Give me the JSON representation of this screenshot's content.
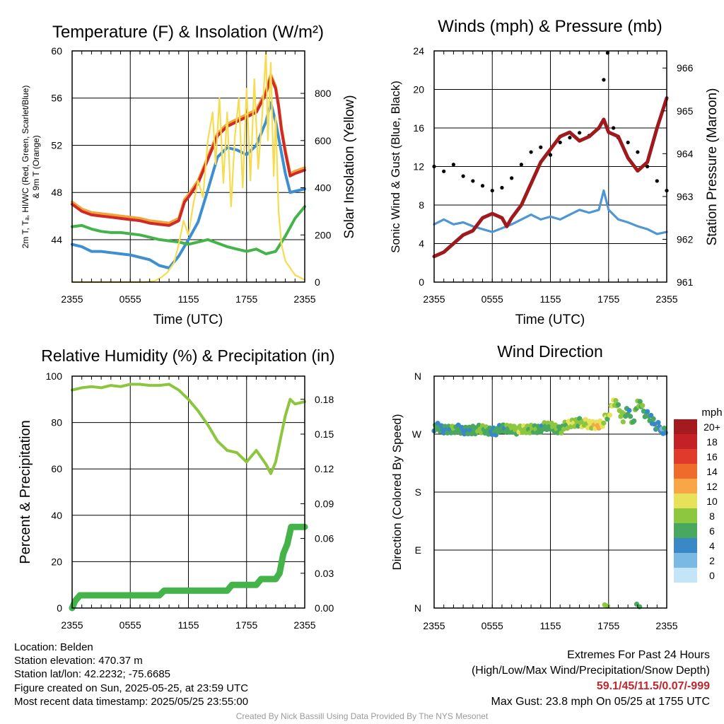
{
  "footer": {
    "location": "Location: Belden",
    "elevation": "Station elevation: 470.37 m",
    "latlon": "Station lat/lon: 42.2232; -75.6685",
    "created": "Figure created on Sun, 2025-05-25, at 23:59 UTC",
    "recent": "Most recent data timestamp: 2025/05/25 23:55:00",
    "extremes_title": "Extremes For Past 24 Hours",
    "extremes_sub": "(High/Low/Max Wind/Precipitation/Snow Depth)",
    "extremes_values": "59.1/45/11.5/0.07/-999",
    "max_gust": "Max Gust: 23.8 mph On 05/25 at 1755 UTC",
    "credit": "Created By Nick Bassill Using Data Provided By The NYS Mesonet"
  },
  "chart_data": [
    {
      "type": "line",
      "title": "Temperature (F) & Insolation (W/m²)",
      "xlabel": "Time (UTC)",
      "ylabel": "2m T, Tₐ, HI/WC (Red, Green, Scarlet/Blue) & 9m T (Orange)",
      "ylabel_line1": "2m T, Tₐ, HI/WC (Red, Green, Scarlet/Blue)",
      "ylabel_line2": "& 9m T (Orange)",
      "y2label": "Solar Insolation (Yellow)",
      "xticks": [
        "2355",
        "0555",
        "1155",
        "1755",
        "2355"
      ],
      "yticks": [
        "60",
        "56",
        "52",
        "48",
        "44"
      ],
      "y2ticks": [
        "800",
        "600",
        "400",
        "200",
        "0"
      ],
      "ylim": [
        40.4,
        60
      ],
      "y2lim": [
        0,
        980
      ],
      "x_hours": [
        0,
        24
      ],
      "series": [
        {
          "color": "#f2a33a",
          "x": [
            0,
            0.5,
            1,
            2,
            3,
            4,
            5,
            6,
            7,
            8,
            9,
            10,
            11,
            11.3,
            11.6,
            12,
            13,
            14,
            14.5,
            15,
            16,
            17,
            18,
            19,
            20,
            20.5,
            21,
            21.3,
            21.6,
            22,
            22.5,
            23,
            24
          ],
          "values": [
            47.2,
            46.9,
            46.6,
            46.3,
            46.2,
            46.1,
            46.0,
            45.9,
            45.8,
            45.6,
            45.5,
            45.4,
            45.8,
            46.6,
            47.4,
            47.8,
            49.0,
            51.0,
            52.0,
            53.0,
            53.8,
            54.2,
            54.6,
            55.0,
            56.6,
            58.0,
            57.0,
            55.5,
            53.5,
            51.6,
            49.6,
            49.8,
            50.1
          ]
        },
        {
          "color": "#cf2a27",
          "x": [
            0,
            0.5,
            1,
            2,
            3,
            4,
            5,
            6,
            7,
            8,
            9,
            10,
            11,
            11.3,
            11.6,
            12,
            13,
            14,
            14.5,
            15,
            16,
            17,
            18,
            19,
            20,
            20.5,
            21,
            21.3,
            21.6,
            22,
            22.5,
            23,
            24
          ],
          "values": [
            47.0,
            46.7,
            46.4,
            46.1,
            46.0,
            45.9,
            45.8,
            45.7,
            45.6,
            45.4,
            45.3,
            45.2,
            45.6,
            46.4,
            47.2,
            47.6,
            48.8,
            50.8,
            51.8,
            52.8,
            53.6,
            54.0,
            54.4,
            54.8,
            56.4,
            57.8,
            56.8,
            55.3,
            53.3,
            51.4,
            49.4,
            49.6,
            49.9
          ]
        },
        {
          "color": "#3d8fcf",
          "x": [
            0,
            1,
            2,
            3,
            4,
            5,
            6,
            7,
            8,
            9,
            10,
            11,
            12,
            13,
            14,
            15,
            16,
            17,
            18,
            19,
            20,
            20.5,
            21,
            21.5,
            22,
            22.5,
            23,
            24
          ],
          "values": [
            43.6,
            43.4,
            43.0,
            43.0,
            42.9,
            42.8,
            42.7,
            42.5,
            42.3,
            41.8,
            41.6,
            42.6,
            44.0,
            45.5,
            48.2,
            51.0,
            51.8,
            51.6,
            51.2,
            52.0,
            54.0,
            55.6,
            54.0,
            51.8,
            49.6,
            48.0,
            48.1,
            48.3
          ]
        },
        {
          "color": "#43b34a",
          "x": [
            0,
            1,
            2,
            3,
            4,
            5,
            6,
            7,
            8,
            9,
            10,
            11,
            12,
            13,
            14,
            15,
            16,
            17,
            18,
            19,
            20,
            21,
            22,
            23,
            24
          ],
          "values": [
            45.1,
            45.2,
            44.9,
            44.7,
            44.6,
            44.6,
            44.5,
            44.4,
            44.2,
            44.0,
            43.9,
            43.8,
            43.6,
            43.8,
            44.0,
            43.7,
            43.4,
            43.2,
            43.0,
            43.2,
            42.8,
            43.0,
            44.3,
            45.8,
            46.8
          ]
        },
        {
          "color": "#f5dc50",
          "axis": "y2",
          "x": [
            0,
            7.5,
            8.5,
            9.2,
            9.8,
            10.5,
            11.0,
            11.5,
            12.0,
            12.5,
            13.0,
            13.5,
            14.0,
            14.5,
            14.8,
            15.2,
            15.6,
            16.0,
            16.4,
            16.8,
            17.2,
            17.6,
            18.0,
            18.4,
            18.8,
            19.2,
            19.6,
            20.0,
            20.2,
            20.5,
            20.8,
            21.0,
            21.3,
            21.6,
            22.0,
            22.5,
            23.0,
            24.0
          ],
          "values": [
            0,
            0,
            5,
            20,
            40,
            80,
            160,
            260,
            200,
            330,
            430,
            360,
            600,
            720,
            500,
            780,
            420,
            720,
            320,
            620,
            780,
            400,
            820,
            430,
            860,
            480,
            700,
            975,
            600,
            930,
            450,
            700,
            300,
            160,
            90,
            60,
            30,
            10
          ]
        }
      ]
    },
    {
      "type": "line",
      "title": "Winds (mph) & Pressure (mb)",
      "xlabel": "Time (UTC)",
      "ylabel": "Sonic Wind & Gust (Blue, Black)",
      "y2label": "Station Pressure (Maroon)",
      "xticks": [
        "2355",
        "0555",
        "1155",
        "1755",
        "2355"
      ],
      "yticks": [
        "24",
        "20",
        "16",
        "12",
        "8",
        "4",
        "0"
      ],
      "y2ticks": [
        "966",
        "965",
        "964",
        "963",
        "962",
        "961"
      ],
      "ylim": [
        0,
        24
      ],
      "y2lim": [
        961,
        966.4
      ],
      "x_hours": [
        0,
        24
      ],
      "series": [
        {
          "name": "wind",
          "color": "#4f96d3",
          "x": [
            0,
            1,
            2,
            3,
            4,
            5,
            6,
            7,
            8,
            9,
            10,
            11,
            12,
            13,
            14,
            15,
            16,
            17,
            17.5,
            18,
            19,
            20,
            21,
            22,
            23,
            24
          ],
          "values": [
            6.0,
            6.5,
            6.0,
            6.2,
            5.8,
            5.5,
            5.2,
            5.6,
            6.0,
            6.5,
            7.0,
            6.5,
            6.8,
            6.5,
            7.0,
            7.5,
            7.2,
            7.5,
            9.5,
            7.5,
            6.5,
            6.2,
            5.8,
            5.5,
            5.0,
            5.2
          ]
        },
        {
          "name": "gust",
          "color": "#000000",
          "x": [
            0,
            1,
            2,
            3,
            4,
            5,
            6,
            7,
            8,
            9,
            10,
            11,
            12,
            13,
            14,
            15,
            16,
            17,
            17.5,
            17.9,
            18.5,
            19,
            20,
            21,
            22,
            23,
            24
          ],
          "values": [
            12,
            11.5,
            12.2,
            11.0,
            10.5,
            10.0,
            9.5,
            9.8,
            10.8,
            12.2,
            13.5,
            14.0,
            13.2,
            14.5,
            15.0,
            15.5,
            15.2,
            16.0,
            21.0,
            23.8,
            16.0,
            15.0,
            14.5,
            13.5,
            12.0,
            10.5,
            9.5
          ]
        },
        {
          "name": "pressure",
          "color": "#9e1a1d",
          "axis": "y2",
          "x": [
            0,
            1,
            2,
            2.5,
            3,
            4,
            5,
            6,
            7,
            7.5,
            8,
            9,
            10,
            11,
            12,
            13,
            14,
            15,
            16,
            17,
            17.5,
            18,
            19,
            20,
            21,
            22,
            23,
            24
          ],
          "values": [
            961.6,
            961.7,
            961.9,
            962.0,
            962.1,
            962.2,
            962.5,
            962.6,
            962.5,
            962.3,
            962.5,
            962.8,
            963.3,
            963.8,
            964.1,
            964.4,
            964.5,
            964.3,
            964.4,
            964.6,
            964.8,
            964.5,
            964.4,
            963.9,
            963.6,
            963.8,
            964.6,
            965.3
          ]
        }
      ]
    },
    {
      "type": "line",
      "title": "Relative Humidity (%) & Precipitation (in)",
      "ylabel": "Percent & Precipitation",
      "xticks": [
        "2355",
        "0555",
        "1155",
        "1755",
        "2355"
      ],
      "yticks": [
        "100",
        "80",
        "60",
        "40",
        "20",
        "0"
      ],
      "y2ticks": [
        "0.18",
        "0.15",
        "0.12",
        "0.09",
        "0.06",
        "0.03",
        "0.00"
      ],
      "ylim": [
        0,
        100
      ],
      "y2lim": [
        0,
        0.2
      ],
      "x_hours": [
        0,
        24
      ],
      "series": [
        {
          "name": "rh",
          "color": "#8cc63f",
          "x": [
            0,
            1,
            2,
            3,
            4,
            5,
            6,
            7,
            8,
            9,
            10,
            11,
            12,
            13,
            14,
            15,
            16,
            17,
            18,
            19,
            20,
            20.5,
            21,
            21.5,
            22,
            22.5,
            23,
            24
          ],
          "values": [
            94,
            95,
            95.5,
            95,
            96,
            95.5,
            96.5,
            96.5,
            96,
            96,
            96.5,
            94,
            90,
            85,
            79,
            72,
            68,
            67,
            63,
            68,
            62,
            58,
            63,
            73,
            83,
            90,
            88,
            89
          ]
        },
        {
          "name": "precip",
          "color": "#43b34a",
          "axis": "y2",
          "x": [
            0,
            0.3,
            0.8,
            1.5,
            9,
            9.5,
            16,
            16.5,
            19,
            19.5,
            21,
            21.4,
            21.8,
            22.2,
            22.6,
            23.2,
            24
          ],
          "values": [
            0,
            0.006,
            0.011,
            0.011,
            0.011,
            0.015,
            0.015,
            0.02,
            0.02,
            0.025,
            0.025,
            0.03,
            0.047,
            0.055,
            0.07,
            0.07,
            0.07
          ]
        }
      ]
    },
    {
      "type": "scatter",
      "title": "Wind Direction",
      "ylabel": "Direction (Colored By Speed)",
      "xticks": [
        "2355",
        "0555",
        "1155",
        "1755",
        "2355"
      ],
      "yticks": [
        "N",
        "W",
        "S",
        "E",
        "N"
      ],
      "ylim": [
        0,
        360
      ],
      "legend_title": "mph",
      "legend_labels": [
        "20+",
        "18",
        "16",
        "14",
        "12",
        "10",
        "8",
        "6",
        "4",
        "2",
        "0"
      ],
      "legend_colors": [
        "#a41a1f",
        "#c42126",
        "#df3a2b",
        "#ef6b2c",
        "#f9a647",
        "#e8e25a",
        "#8dc740",
        "#49a85f",
        "#3a88c6",
        "#7ab9e4",
        "#c3e5f7"
      ],
      "x": [
        0,
        1,
        2,
        3,
        4,
        5,
        6,
        7,
        8,
        9,
        10,
        11,
        12,
        13,
        14,
        15,
        16,
        17,
        17.5,
        18,
        18.5,
        19,
        19.5,
        20,
        20.5,
        21,
        21.5,
        22,
        22.5,
        23,
        23.5,
        24
      ],
      "values": [
        282,
        276,
        280,
        274,
        278,
        276,
        275,
        277,
        279,
        275,
        278,
        280,
        282,
        278,
        285,
        290,
        283,
        285,
        290,
        300,
        320,
        310,
        296,
        305,
        290,
        320,
        310,
        298,
        292,
        282,
        278,
        272
      ],
      "speeds": [
        5,
        4,
        6,
        4,
        5,
        7,
        4,
        5,
        6,
        8,
        7,
        5,
        7,
        6,
        8,
        7,
        9,
        10,
        8,
        7,
        9,
        6,
        8,
        5,
        6,
        7,
        6,
        5,
        4,
        4,
        3,
        4
      ],
      "extra_x": [
        17.6,
        17.9,
        20.9,
        21.2
      ],
      "extra_values": [
        5,
        3,
        6,
        2
      ],
      "extra_speeds": [
        7,
        8,
        5,
        6
      ]
    }
  ]
}
